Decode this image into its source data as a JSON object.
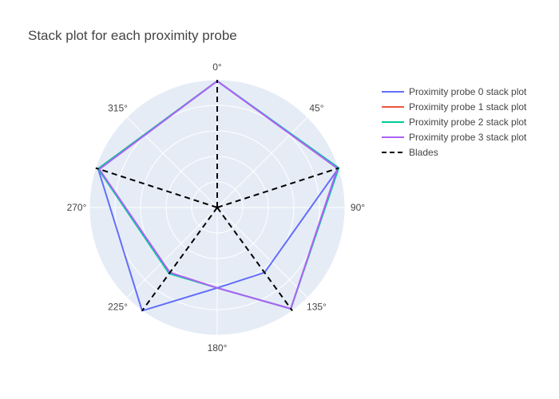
{
  "chart_data": {
    "type": "polar-line",
    "title": "Stack plot for each proximity probe",
    "angular_axis": {
      "direction": "clockwise",
      "rotation": "0° at top",
      "tick_labels": [
        "0°",
        "45°",
        "90°",
        "135°",
        "180°",
        "225°",
        "270°",
        "315°"
      ]
    },
    "radial_axis": {
      "range": [
        0,
        1
      ],
      "gridlines": [
        0.2,
        0.4,
        0.6,
        0.8,
        1.0
      ],
      "tick_labels_shown": false
    },
    "background_color": "#e5ecf6",
    "legend_position": "right",
    "series": [
      {
        "name": "Proximity probe 0 stack plot",
        "color": "#636efa",
        "dash": "solid",
        "theta": [
          0,
          72,
          144,
          180,
          216,
          288,
          0
        ],
        "r": [
          0.99,
          1.0,
          0.63,
          0.63,
          1.0,
          0.98,
          0.99
        ]
      },
      {
        "name": "Proximity probe 1 stack plot",
        "color": "#ef553b",
        "dash": "solid",
        "theta": [
          0,
          72,
          144,
          180,
          216,
          288,
          0
        ],
        "r": [
          0.99,
          0.99,
          0.98,
          0.63,
          0.63,
          0.98,
          0.99
        ]
      },
      {
        "name": "Proximity probe 2 stack plot",
        "color": "#00cc96",
        "dash": "solid",
        "theta": [
          0,
          72,
          144,
          180,
          216,
          288,
          0
        ],
        "r": [
          0.99,
          1.0,
          0.98,
          0.63,
          0.64,
          0.98,
          0.99
        ]
      },
      {
        "name": "Proximity probe 3 stack plot",
        "color": "#ab63fa",
        "dash": "solid",
        "theta": [
          0,
          72,
          144,
          180,
          216,
          288,
          0
        ],
        "r": [
          0.99,
          0.99,
          0.98,
          0.63,
          0.63,
          0.97,
          0.99
        ]
      },
      {
        "name": "Blades",
        "color": "#000000",
        "dash": "dash",
        "segments_theta": [
          0,
          72,
          144,
          216,
          288
        ],
        "r": 1.0
      }
    ]
  }
}
